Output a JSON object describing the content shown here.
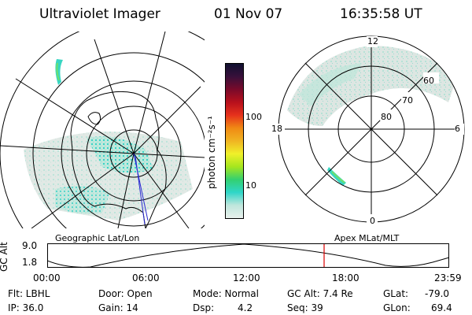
{
  "header": {
    "title": "Ultraviolet Imager",
    "date": "01 Nov 07",
    "time": "16:35:58 UT"
  },
  "colorbar": {
    "unit_label": "photon cm⁻²s⁻¹",
    "ticks": [
      "100",
      "10"
    ],
    "colors": [
      "#e8f0ec",
      "#bfe6dc",
      "#2fd6c8",
      "#33d070",
      "#a6e61e",
      "#f0f02a",
      "#f0b422",
      "#f08a14",
      "#e6321c",
      "#b8101c",
      "#7a0a2a",
      "#38103a",
      "#101030"
    ]
  },
  "geo_map": {
    "label": "Geographic Lat/Lon"
  },
  "polar_map": {
    "label": "Apex MLat/MLT",
    "mlt_labels": [
      "12",
      "18",
      "6",
      "0"
    ],
    "lat_labels": [
      "60",
      "70",
      "80"
    ]
  },
  "timeline": {
    "ylabel": "GC Alt",
    "yticks": [
      "9.0",
      "1.8"
    ],
    "xticks": [
      "00:00",
      "06:00",
      "12:00",
      "18:00",
      "23:59"
    ],
    "marker_color": "#dd0000"
  },
  "footer": {
    "flt": "Flt: LBHL",
    "ip": "IP: 36.0",
    "door": "Door: Open",
    "gain": "Gain: 14",
    "mode": "Mode: Normal",
    "dsp_label": "Dsp:",
    "dsp_value": "4.2",
    "gc_alt": "GC Alt: 7.4 Re",
    "seq": "Seq: 39",
    "glat_label": "GLat:",
    "glat_value": "-79.0",
    "glon_label": "GLon:",
    "glon_value": "69.4"
  }
}
